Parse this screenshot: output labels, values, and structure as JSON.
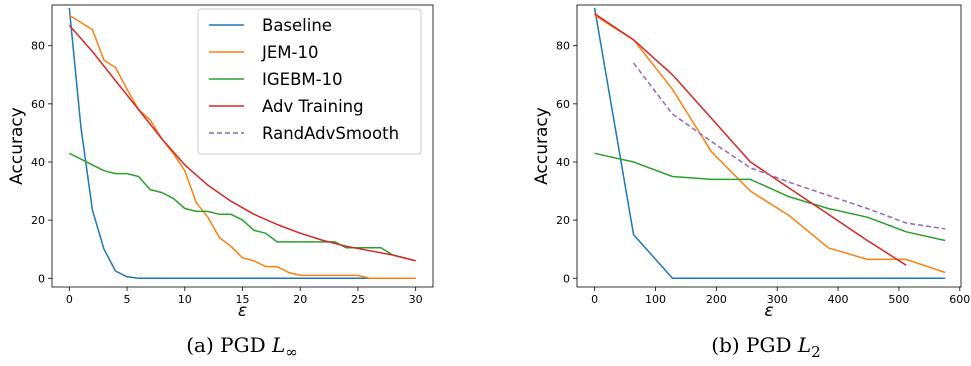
{
  "colors": {
    "baseline": "#1f77b4",
    "jem": "#ff7f0e",
    "igebm": "#2ca02c",
    "adv": "#d62728",
    "rand": "#9467bd"
  },
  "chart_data": [
    {
      "type": "line",
      "caption": "(a) PGD L∞",
      "xlabel": "ε",
      "ylabel": "Accuracy",
      "xlim": [
        -1.5,
        31.5
      ],
      "ylim": [
        -3,
        94
      ],
      "xticks": [
        0,
        5,
        10,
        15,
        20,
        25,
        30
      ],
      "yticks": [
        0,
        20,
        40,
        60,
        80
      ],
      "grid": false,
      "legend": "top-right",
      "series": [
        {
          "name": "Baseline",
          "color_key": "baseline",
          "dashed": false,
          "x": [
            0,
            1,
            2,
            3,
            4,
            5,
            6,
            8,
            10,
            15,
            20,
            25,
            30
          ],
          "y": [
            93,
            52,
            23.5,
            10,
            2.5,
            0.5,
            0,
            0,
            0,
            0,
            0,
            0,
            0
          ]
        },
        {
          "name": "JEM-10",
          "color_key": "jem",
          "dashed": false,
          "x": [
            0,
            1,
            2,
            3,
            4,
            5,
            6,
            7,
            8,
            9,
            10,
            11,
            12,
            13,
            14,
            15,
            16,
            17,
            18,
            19,
            20,
            21,
            22,
            23,
            24,
            25,
            26,
            27,
            28,
            29,
            30
          ],
          "y": [
            90.5,
            88,
            85.5,
            75,
            72.5,
            65,
            58,
            54.5,
            48,
            43,
            37,
            26,
            21,
            14,
            11,
            7,
            6,
            4,
            4,
            2,
            1,
            1,
            1,
            1,
            1,
            1,
            0,
            0,
            0,
            0,
            0
          ]
        },
        {
          "name": "IGEBM-10",
          "color_key": "igebm",
          "dashed": false,
          "x": [
            0,
            1,
            2,
            3,
            4,
            5,
            6,
            7,
            8,
            9,
            10,
            11,
            12,
            13,
            14,
            15,
            16,
            17,
            18,
            19,
            20,
            21,
            22,
            23,
            24,
            25,
            26,
            27,
            28,
            29,
            30
          ],
          "y": [
            43,
            41,
            39,
            37,
            36,
            36,
            35,
            30.5,
            29.5,
            27.5,
            24,
            23,
            23,
            22,
            22,
            20,
            16.5,
            15.5,
            12.5,
            12.5,
            12.5,
            12.5,
            12.5,
            12.5,
            10.5,
            10.5,
            10.5,
            10.5,
            8,
            7,
            6
          ]
        },
        {
          "name": "Adv Training",
          "color_key": "adv",
          "dashed": false,
          "x": [
            0,
            2,
            4,
            6,
            8,
            10,
            12,
            14,
            16,
            18,
            20,
            22,
            24,
            26,
            28,
            30
          ],
          "y": [
            87,
            78,
            68,
            58,
            48,
            39,
            32,
            26.5,
            22,
            18.5,
            15.5,
            13,
            11,
            9.5,
            8,
            6
          ]
        }
      ]
    },
    {
      "type": "line",
      "caption": "(b) PGD L2",
      "xlabel": "ε",
      "ylabel": "Accuracy",
      "xlim": [
        -29,
        602
      ],
      "ylim": [
        -3,
        94
      ],
      "xticks": [
        0,
        100,
        200,
        300,
        400,
        500,
        600
      ],
      "yticks": [
        0,
        20,
        40,
        60,
        80
      ],
      "grid": false,
      "legend": "top-right",
      "series": [
        {
          "name": "Baseline",
          "color_key": "baseline",
          "dashed": false,
          "x": [
            0,
            64,
            128,
            192,
            256,
            320,
            384,
            448,
            512,
            576
          ],
          "y": [
            93,
            15,
            0,
            0,
            0,
            0,
            0,
            0,
            0,
            0
          ]
        },
        {
          "name": "JEM-10",
          "color_key": "jem",
          "dashed": false,
          "x": [
            0,
            64,
            128,
            192,
            256,
            320,
            384,
            448,
            512,
            576
          ],
          "y": [
            90.5,
            82,
            65,
            43.5,
            30,
            21.5,
            10.5,
            6.5,
            6.5,
            2
          ]
        },
        {
          "name": "IGEBM-10",
          "color_key": "igebm",
          "dashed": false,
          "x": [
            0,
            64,
            128,
            192,
            256,
            320,
            384,
            448,
            512,
            576
          ],
          "y": [
            43,
            40,
            35,
            34,
            34,
            28,
            24,
            21,
            16,
            13
          ]
        },
        {
          "name": "Adv Training",
          "color_key": "adv",
          "dashed": false,
          "x": [
            0,
            64,
            128,
            192,
            256,
            320,
            384,
            448,
            512
          ],
          "y": [
            91,
            82,
            70,
            55,
            40,
            31,
            22,
            13,
            4.5
          ]
        },
        {
          "name": "RandAdvSmooth",
          "color_key": "rand",
          "dashed": true,
          "x": [
            64,
            128,
            192,
            256,
            320,
            384,
            448,
            512,
            576
          ],
          "y": [
            74,
            56.5,
            47,
            38,
            33,
            28.5,
            24,
            19,
            17
          ]
        }
      ]
    }
  ]
}
